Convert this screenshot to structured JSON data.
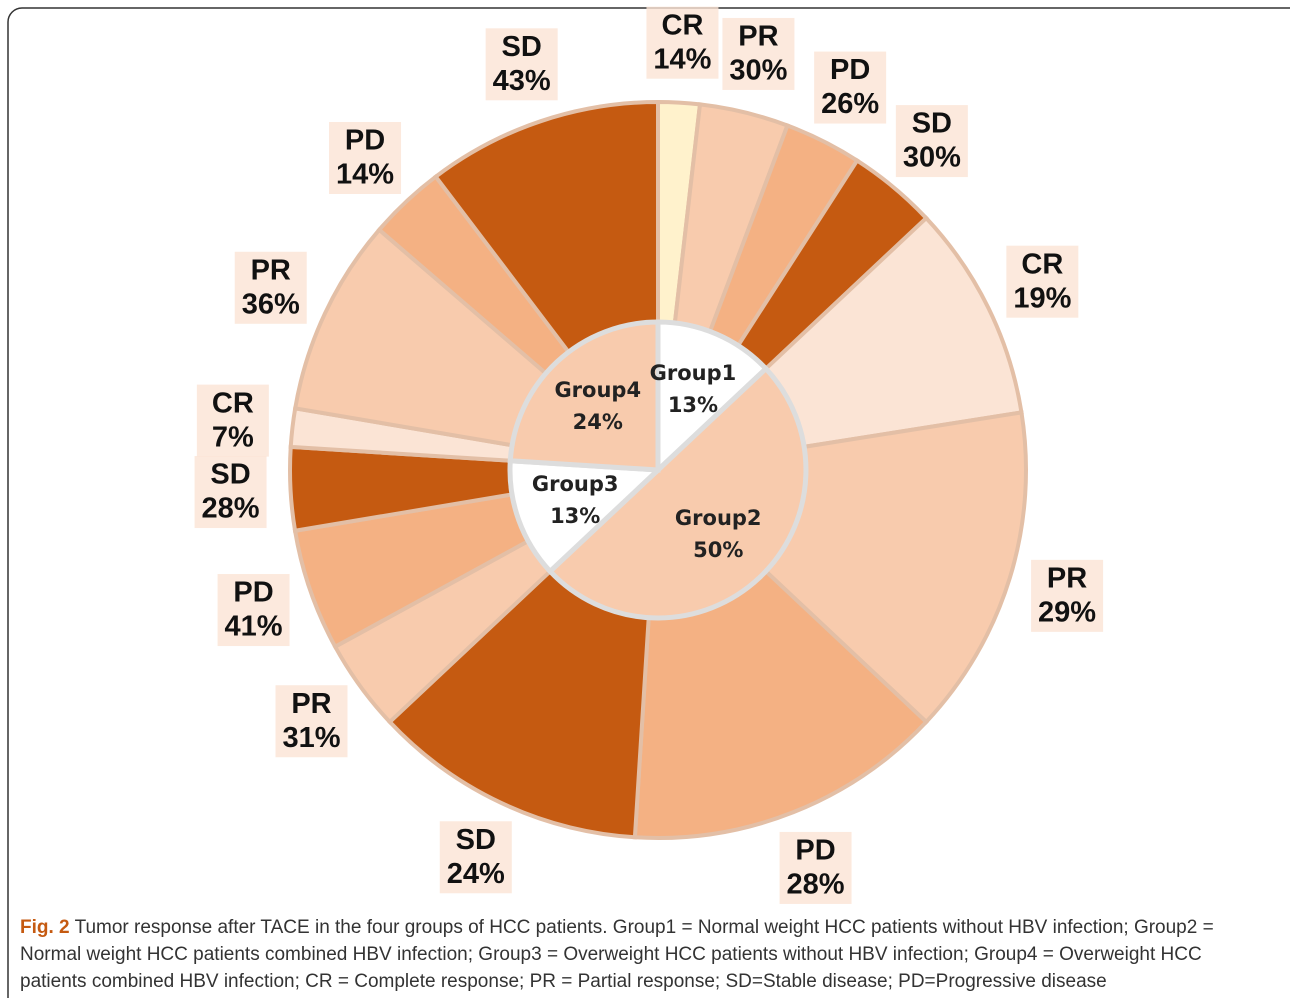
{
  "chart_data": {
    "type": "sunburst",
    "series": [
      {
        "name": "Group1",
        "value": 13,
        "value_label": "13%",
        "color": "#ffffff",
        "categories": [
          "CR",
          "PR",
          "PD",
          "SD"
        ],
        "values": [
          14,
          30,
          26,
          30
        ],
        "value_labels": [
          "14%",
          "30%",
          "26%",
          "30%"
        ],
        "colors": [
          "#fff2cc",
          "#f8cbad",
          "#f4b183",
          "#c55a11"
        ]
      },
      {
        "name": "Group2",
        "value": 50,
        "value_label": "50%",
        "color": "#f8cbad",
        "categories": [
          "CR",
          "PR",
          "PD",
          "SD"
        ],
        "values": [
          19,
          29,
          28,
          24
        ],
        "value_labels": [
          "19%",
          "29%",
          "28%",
          "24%"
        ],
        "colors": [
          "#fbe4d5",
          "#f8cbad",
          "#f4b183",
          "#c55a11"
        ]
      },
      {
        "name": "Group3",
        "value": 13,
        "value_label": "13%",
        "color": "#ffffff",
        "categories": [
          "PR",
          "PD",
          "SD"
        ],
        "values": [
          31,
          41,
          28
        ],
        "value_labels": [
          "31%",
          "41%",
          "28%"
        ],
        "colors": [
          "#f8cbad",
          "#f4b183",
          "#c55a11"
        ]
      },
      {
        "name": "Group4",
        "value": 24,
        "value_label": "24%",
        "color": "#f8cbad",
        "categories": [
          "CR",
          "PR",
          "PD",
          "SD"
        ],
        "values": [
          7,
          36,
          14,
          43
        ],
        "value_labels": [
          "7%",
          "36%",
          "14%",
          "43%"
        ],
        "colors": [
          "#fbe4d5",
          "#f8cbad",
          "#f4b183",
          "#c55a11"
        ]
      }
    ]
  },
  "caption": {
    "label": "Fig. 2",
    "text": "Tumor response after TACE in the four groups of HCC patients. Group1 = Normal weight HCC patients without HBV infection; Group2 = Normal weight HCC patients combined HBV infection; Group3 = Overweight HCC patients without HBV infection; Group4 = Overweight HCC patients combined HBV infection; CR = Complete response; PR = Partial response; SD=Stable disease; PD=Progressive disease"
  }
}
